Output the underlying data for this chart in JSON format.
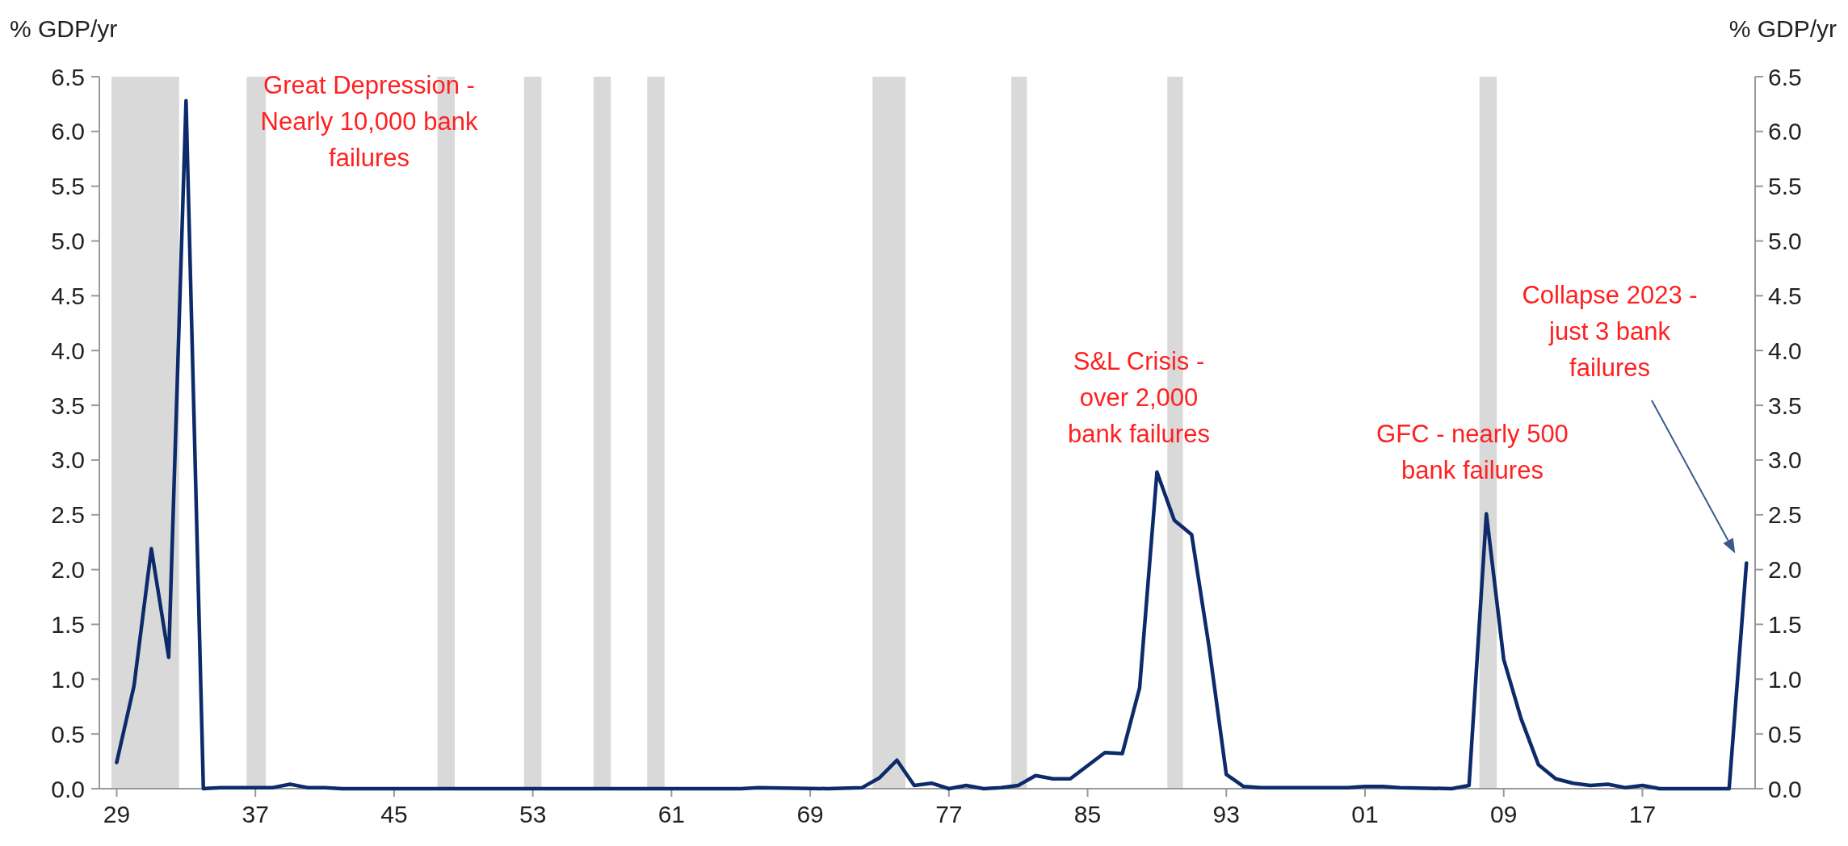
{
  "chart_data": {
    "type": "line",
    "ylabel": "% GDP/yr",
    "y2label": "% GDP/yr",
    "x": [
      1929,
      1930,
      1931,
      1932,
      1933,
      1934,
      1935,
      1936,
      1937,
      1938,
      1939,
      1940,
      1941,
      1942,
      1945,
      1950,
      1955,
      1960,
      1965,
      1966,
      1970,
      1972,
      1973,
      1974,
      1975,
      1976,
      1977,
      1978,
      1979,
      1980,
      1981,
      1982,
      1983,
      1984,
      1985,
      1986,
      1987,
      1988,
      1989,
      1990,
      1991,
      1992,
      1993,
      1994,
      1995,
      2000,
      2001,
      2002,
      2003,
      2006,
      2007,
      2008,
      2009,
      2010,
      2011,
      2012,
      2013,
      2014,
      2015,
      2016,
      2017,
      2018,
      2022,
      2023
    ],
    "series": [
      {
        "color": "#0d2a6b",
        "values": [
          0.24,
          0.94,
          2.19,
          1.2,
          6.28,
          0.0,
          0.01,
          0.01,
          0.01,
          0.01,
          0.04,
          0.01,
          0.01,
          0.0,
          0.0,
          0.0,
          0.0,
          0.0,
          0.0,
          0.01,
          0.0,
          0.01,
          0.1,
          0.26,
          0.03,
          0.05,
          0.0,
          0.03,
          0.0,
          0.01,
          0.03,
          0.12,
          0.09,
          0.09,
          0.21,
          0.33,
          0.32,
          0.92,
          2.89,
          2.45,
          2.32,
          1.3,
          0.13,
          0.02,
          0.01,
          0.01,
          0.02,
          0.02,
          0.01,
          0.0,
          0.03,
          2.51,
          1.18,
          0.64,
          0.22,
          0.09,
          0.05,
          0.03,
          0.04,
          0.01,
          0.03,
          0.0,
          0.0,
          2.06
        ]
      }
    ],
    "xlim": [
      1928,
      2023.5
    ],
    "xticks": [
      {
        "value": 1929,
        "label": "29"
      },
      {
        "value": 1937,
        "label": "37"
      },
      {
        "value": 1945,
        "label": "45"
      },
      {
        "value": 1953,
        "label": "53"
      },
      {
        "value": 1961,
        "label": "61"
      },
      {
        "value": 1969,
        "label": "69"
      },
      {
        "value": 1977,
        "label": "77"
      },
      {
        "value": 1985,
        "label": "85"
      },
      {
        "value": 1993,
        "label": "93"
      },
      {
        "value": 2001,
        "label": "01"
      },
      {
        "value": 2009,
        "label": "09"
      },
      {
        "value": 2017,
        "label": "17"
      }
    ],
    "ylim": [
      0,
      6.5
    ],
    "yticks": [
      {
        "value": 0,
        "label": "0.0"
      },
      {
        "value": 0.5,
        "label": "0.5"
      },
      {
        "value": 1,
        "label": "1.0"
      },
      {
        "value": 1.5,
        "label": "1.5"
      },
      {
        "value": 2,
        "label": "2.0"
      },
      {
        "value": 2.5,
        "label": "2.5"
      },
      {
        "value": 3,
        "label": "3.0"
      },
      {
        "value": 3.5,
        "label": "3.5"
      },
      {
        "value": 4,
        "label": "4.0"
      },
      {
        "value": 4.5,
        "label": "4.5"
      },
      {
        "value": 5,
        "label": "5.0"
      },
      {
        "value": 5.5,
        "label": "5.5"
      },
      {
        "value": 6,
        "label": "6.0"
      },
      {
        "value": 6.5,
        "label": "6.5"
      }
    ],
    "y2lim": [
      0,
      6.5
    ],
    "y2ticks": [
      {
        "value": 0,
        "label": "0.0"
      },
      {
        "value": 0.5,
        "label": "0.5"
      },
      {
        "value": 1,
        "label": "1.0"
      },
      {
        "value": 1.5,
        "label": "1.5"
      },
      {
        "value": 2,
        "label": "2.0"
      },
      {
        "value": 2.5,
        "label": "2.5"
      },
      {
        "value": 3,
        "label": "3.0"
      },
      {
        "value": 3.5,
        "label": "3.5"
      },
      {
        "value": 4,
        "label": "4.0"
      },
      {
        "value": 4.5,
        "label": "4.5"
      },
      {
        "value": 5,
        "label": "5.0"
      },
      {
        "value": 5.5,
        "label": "5.5"
      },
      {
        "value": 6,
        "label": "6.0"
      },
      {
        "value": 6.5,
        "label": "6.5"
      }
    ],
    "bands": [
      {
        "axis": "x",
        "from": 1928.7,
        "to": 1932.6,
        "color": "#d9d9d9"
      },
      {
        "axis": "x",
        "from": 1936.5,
        "to": 1937.6,
        "color": "#d9d9d9"
      },
      {
        "axis": "x",
        "from": 1947.5,
        "to": 1948.5,
        "color": "#d9d9d9"
      },
      {
        "axis": "x",
        "from": 1952.5,
        "to": 1953.5,
        "color": "#d9d9d9"
      },
      {
        "axis": "x",
        "from": 1956.5,
        "to": 1957.5,
        "color": "#d9d9d9"
      },
      {
        "axis": "x",
        "from": 1959.6,
        "to": 1960.6,
        "color": "#d9d9d9"
      },
      {
        "axis": "x",
        "from": 1972.6,
        "to": 1974.5,
        "color": "#d9d9d9"
      },
      {
        "axis": "x",
        "from": 1980.6,
        "to": 1981.5,
        "color": "#d9d9d9"
      },
      {
        "axis": "x",
        "from": 1989.6,
        "to": 1990.5,
        "color": "#d9d9d9"
      },
      {
        "axis": "x",
        "from": 2007.6,
        "to": 2008.6,
        "color": "#d9d9d9"
      }
    ],
    "annotations": [
      "Great Depression - Nearly 10,000 bank failures",
      "S&L Crisis - over 2,000 bank failures",
      "GFC - nearly 500 bank failures",
      "Collapse 2023 - just 3 bank failures"
    ],
    "marker": "none",
    "line_style": "solid"
  }
}
